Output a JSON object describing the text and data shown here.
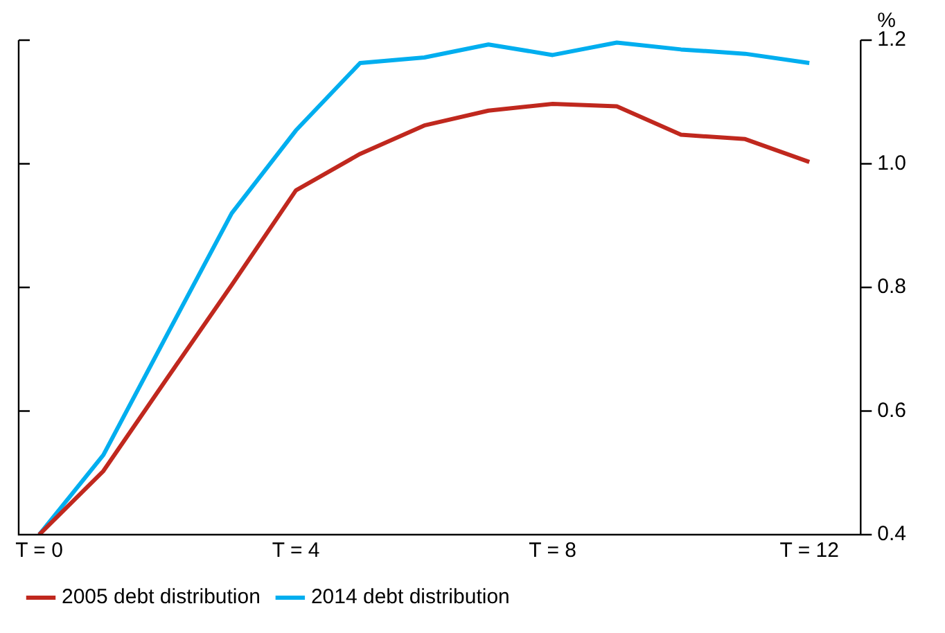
{
  "chart_data": {
    "type": "line",
    "ylabel": "%",
    "x": [
      0,
      1,
      2,
      3,
      4,
      5,
      6,
      7,
      8,
      9,
      10,
      11,
      12
    ],
    "series": [
      {
        "name": "2005 debt distribution",
        "color": "#c0281e",
        "values": [
          0.4,
          0.503,
          0.654,
          0.804,
          0.957,
          1.016,
          1.062,
          1.086,
          1.097,
          1.093,
          1.047,
          1.04,
          1.003
        ]
      },
      {
        "name": "2014 debt distribution",
        "color": "#00aeef",
        "values": [
          0.4,
          0.529,
          0.725,
          0.92,
          1.054,
          1.163,
          1.172,
          1.193,
          1.176,
          1.196,
          1.185,
          1.178,
          1.163
        ]
      }
    ],
    "xlim": [
      -0.32,
      12.8
    ],
    "xticks": [
      {
        "value": 0,
        "label": "T = 0"
      },
      {
        "value": 4,
        "label": "T = 4"
      },
      {
        "value": 8,
        "label": "T = 8"
      },
      {
        "value": 12,
        "label": "T = 12"
      }
    ],
    "ylim": [
      0.4,
      1.2
    ],
    "yticks": [
      {
        "value": 0.4,
        "label": "0.4"
      },
      {
        "value": 0.6,
        "label": "0.6"
      },
      {
        "value": 0.8,
        "label": "0.8"
      },
      {
        "value": 1.0,
        "label": "1.0"
      },
      {
        "value": 1.2,
        "label": "1.2"
      }
    ],
    "grid": false,
    "legend": "bottom",
    "marker": "none",
    "line_style": "solid",
    "tick_labels": "xy2"
  }
}
